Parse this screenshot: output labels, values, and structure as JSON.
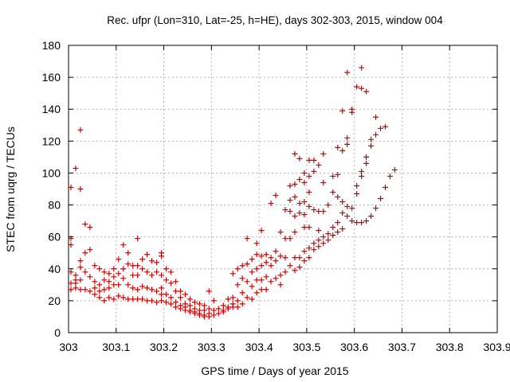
{
  "chart_data": {
    "type": "scatter",
    "title": "Rec. ufpr (Lon=310, Lat=-25, h=HE), days 302-303, 2015, window 004",
    "xlabel": "GPS time / Days of year 2015",
    "ylabel": "STEC from uqrg / TECUs",
    "xlim": [
      303,
      303.9
    ],
    "ylim": [
      0,
      180
    ],
    "xticks": [
      "303",
      "303.1",
      "303.2",
      "303.3",
      "303.4",
      "303.5",
      "303.6",
      "303.7",
      "303.8",
      "303.9"
    ],
    "yticks": [
      "0",
      "20",
      "40",
      "60",
      "80",
      "100",
      "120",
      "140",
      "160",
      "180"
    ],
    "grid": true,
    "marker": "plus",
    "color": "#cc0000",
    "points": [
      [
        303.005,
        91
      ],
      [
        303.005,
        59
      ],
      [
        303.005,
        55
      ],
      [
        303.005,
        38
      ],
      [
        303.005,
        31
      ],
      [
        303.005,
        27
      ],
      [
        303.015,
        103
      ],
      [
        303.015,
        36
      ],
      [
        303.015,
        33
      ],
      [
        303.015,
        31
      ],
      [
        303.015,
        28
      ],
      [
        303.025,
        127
      ],
      [
        303.025,
        90
      ],
      [
        303.025,
        45
      ],
      [
        303.025,
        41
      ],
      [
        303.025,
        33
      ],
      [
        303.025,
        27
      ],
      [
        303.035,
        68
      ],
      [
        303.035,
        50
      ],
      [
        303.035,
        38
      ],
      [
        303.035,
        27
      ],
      [
        303.045,
        66
      ],
      [
        303.045,
        52
      ],
      [
        303.045,
        35
      ],
      [
        303.045,
        26
      ],
      [
        303.055,
        42
      ],
      [
        303.055,
        32
      ],
      [
        303.055,
        28
      ],
      [
        303.055,
        24
      ],
      [
        303.065,
        40
      ],
      [
        303.065,
        30
      ],
      [
        303.065,
        26
      ],
      [
        303.065,
        22
      ],
      [
        303.075,
        38
      ],
      [
        303.075,
        33
      ],
      [
        303.075,
        27
      ],
      [
        303.075,
        20
      ],
      [
        303.085,
        37
      ],
      [
        303.085,
        32
      ],
      [
        303.085,
        28
      ],
      [
        303.085,
        22
      ],
      [
        303.095,
        40
      ],
      [
        303.095,
        35
      ],
      [
        303.095,
        30
      ],
      [
        303.095,
        21
      ],
      [
        303.105,
        46
      ],
      [
        303.105,
        37
      ],
      [
        303.105,
        30
      ],
      [
        303.105,
        23
      ],
      [
        303.115,
        55
      ],
      [
        303.115,
        40
      ],
      [
        303.115,
        34
      ],
      [
        303.115,
        22
      ],
      [
        303.125,
        50
      ],
      [
        303.125,
        43
      ],
      [
        303.125,
        30
      ],
      [
        303.125,
        21
      ],
      [
        303.135,
        42
      ],
      [
        303.135,
        36
      ],
      [
        303.135,
        28
      ],
      [
        303.135,
        21
      ],
      [
        303.145,
        59
      ],
      [
        303.145,
        42
      ],
      [
        303.145,
        36
      ],
      [
        303.145,
        27
      ],
      [
        303.145,
        21
      ],
      [
        303.155,
        46
      ],
      [
        303.155,
        40
      ],
      [
        303.155,
        29
      ],
      [
        303.155,
        21
      ],
      [
        303.165,
        49
      ],
      [
        303.165,
        38
      ],
      [
        303.165,
        28
      ],
      [
        303.165,
        20
      ],
      [
        303.175,
        45
      ],
      [
        303.175,
        36
      ],
      [
        303.175,
        27
      ],
      [
        303.175,
        20
      ],
      [
        303.185,
        44
      ],
      [
        303.185,
        38
      ],
      [
        303.185,
        26
      ],
      [
        303.185,
        19
      ],
      [
        303.195,
        50
      ],
      [
        303.195,
        48
      ],
      [
        303.195,
        36
      ],
      [
        303.195,
        28
      ],
      [
        303.195,
        24
      ],
      [
        303.195,
        20
      ],
      [
        303.205,
        40
      ],
      [
        303.205,
        33
      ],
      [
        303.205,
        24
      ],
      [
        303.205,
        19
      ],
      [
        303.215,
        38
      ],
      [
        303.215,
        31
      ],
      [
        303.215,
        22
      ],
      [
        303.215,
        18
      ],
      [
        303.225,
        32
      ],
      [
        303.225,
        26
      ],
      [
        303.225,
        19
      ],
      [
        303.225,
        16
      ],
      [
        303.235,
        26
      ],
      [
        303.235,
        22
      ],
      [
        303.235,
        17
      ],
      [
        303.235,
        15
      ],
      [
        303.245,
        24
      ],
      [
        303.245,
        18
      ],
      [
        303.245,
        16
      ],
      [
        303.245,
        14
      ],
      [
        303.255,
        21
      ],
      [
        303.255,
        17
      ],
      [
        303.255,
        14
      ],
      [
        303.255,
        13
      ],
      [
        303.265,
        19
      ],
      [
        303.265,
        15
      ],
      [
        303.265,
        13
      ],
      [
        303.265,
        12
      ],
      [
        303.275,
        18
      ],
      [
        303.275,
        14
      ],
      [
        303.275,
        12
      ],
      [
        303.275,
        11
      ],
      [
        303.285,
        17
      ],
      [
        303.285,
        14
      ],
      [
        303.285,
        11
      ],
      [
        303.285,
        10
      ],
      [
        303.295,
        26
      ],
      [
        303.295,
        15
      ],
      [
        303.295,
        12
      ],
      [
        303.295,
        10
      ],
      [
        303.305,
        20
      ],
      [
        303.305,
        14
      ],
      [
        303.305,
        11
      ],
      [
        303.315,
        15
      ],
      [
        303.315,
        12
      ],
      [
        303.325,
        17
      ],
      [
        303.325,
        13
      ],
      [
        303.325,
        14
      ],
      [
        303.335,
        21
      ],
      [
        303.335,
        16
      ],
      [
        303.335,
        15
      ],
      [
        303.345,
        37
      ],
      [
        303.345,
        22
      ],
      [
        303.345,
        18
      ],
      [
        303.345,
        16
      ],
      [
        303.355,
        40
      ],
      [
        303.355,
        30
      ],
      [
        303.355,
        20
      ],
      [
        303.355,
        16
      ],
      [
        303.365,
        42
      ],
      [
        303.365,
        34
      ],
      [
        303.365,
        25
      ],
      [
        303.365,
        18
      ],
      [
        303.375,
        59
      ],
      [
        303.375,
        43
      ],
      [
        303.375,
        32
      ],
      [
        303.375,
        22
      ],
      [
        303.385,
        46
      ],
      [
        303.385,
        38
      ],
      [
        303.385,
        29
      ],
      [
        303.385,
        21
      ],
      [
        303.395,
        56
      ],
      [
        303.395,
        49
      ],
      [
        303.395,
        40
      ],
      [
        303.395,
        33
      ],
      [
        303.395,
        25
      ],
      [
        303.405,
        64
      ],
      [
        303.405,
        48
      ],
      [
        303.405,
        42
      ],
      [
        303.405,
        33
      ],
      [
        303.405,
        27
      ],
      [
        303.415,
        49
      ],
      [
        303.415,
        44
      ],
      [
        303.415,
        35
      ],
      [
        303.415,
        27
      ],
      [
        303.425,
        81
      ],
      [
        303.425,
        47
      ],
      [
        303.425,
        42
      ],
      [
        303.425,
        32
      ],
      [
        303.435,
        86
      ],
      [
        303.435,
        51
      ],
      [
        303.435,
        45
      ],
      [
        303.435,
        34
      ],
      [
        303.445,
        63
      ],
      [
        303.445,
        48
      ],
      [
        303.445,
        36
      ],
      [
        303.445,
        30
      ],
      [
        303.455,
        77
      ],
      [
        303.455,
        59
      ],
      [
        303.455,
        47
      ],
      [
        303.455,
        38
      ],
      [
        303.465,
        92
      ],
      [
        303.465,
        83
      ],
      [
        303.465,
        76
      ],
      [
        303.465,
        59
      ],
      [
        303.465,
        42
      ],
      [
        303.475,
        112
      ],
      [
        303.475,
        93
      ],
      [
        303.475,
        85
      ],
      [
        303.475,
        73
      ],
      [
        303.475,
        63
      ],
      [
        303.475,
        47
      ],
      [
        303.475,
        39
      ],
      [
        303.485,
        109
      ],
      [
        303.485,
        96
      ],
      [
        303.485,
        81
      ],
      [
        303.485,
        75
      ],
      [
        303.485,
        47
      ],
      [
        303.485,
        41
      ],
      [
        303.495,
        100
      ],
      [
        303.495,
        94
      ],
      [
        303.495,
        82
      ],
      [
        303.495,
        74
      ],
      [
        303.495,
        66
      ],
      [
        303.495,
        51
      ],
      [
        303.495,
        45
      ],
      [
        303.505,
        108
      ],
      [
        303.505,
        98
      ],
      [
        303.505,
        88
      ],
      [
        303.505,
        79
      ],
      [
        303.505,
        66
      ],
      [
        303.505,
        53
      ],
      [
        303.505,
        47
      ],
      [
        303.515,
        108
      ],
      [
        303.515,
        101
      ],
      [
        303.515,
        77
      ],
      [
        303.515,
        56
      ],
      [
        303.515,
        52
      ],
      [
        303.525,
        105
      ],
      [
        303.525,
        76
      ],
      [
        303.525,
        64
      ],
      [
        303.525,
        58
      ],
      [
        303.525,
        54
      ],
      [
        303.535,
        112
      ],
      [
        303.535,
        94
      ],
      [
        303.535,
        76
      ],
      [
        303.535,
        60
      ],
      [
        303.535,
        56
      ],
      [
        303.545,
        80
      ],
      [
        303.545,
        62
      ],
      [
        303.545,
        58
      ],
      [
        303.555,
        98
      ],
      [
        303.555,
        88
      ],
      [
        303.555,
        66
      ],
      [
        303.555,
        61
      ],
      [
        303.565,
        116
      ],
      [
        303.565,
        99
      ],
      [
        303.565,
        85
      ],
      [
        303.565,
        69
      ],
      [
        303.565,
        63
      ],
      [
        303.575,
        139
      ],
      [
        303.575,
        114
      ],
      [
        303.575,
        82
      ],
      [
        303.575,
        75
      ],
      [
        303.575,
        65
      ],
      [
        303.585,
        163
      ],
      [
        303.585,
        122
      ],
      [
        303.585,
        118
      ],
      [
        303.585,
        79
      ],
      [
        303.585,
        73
      ],
      [
        303.595,
        140
      ],
      [
        303.595,
        138
      ],
      [
        303.595,
        78
      ],
      [
        303.595,
        70
      ],
      [
        303.605,
        154
      ],
      [
        303.605,
        92
      ],
      [
        303.605,
        87
      ],
      [
        303.605,
        69
      ],
      [
        303.615,
        166
      ],
      [
        303.615,
        153
      ],
      [
        303.615,
        101
      ],
      [
        303.615,
        98
      ],
      [
        303.615,
        69
      ],
      [
        303.625,
        151
      ],
      [
        303.625,
        110
      ],
      [
        303.625,
        106
      ],
      [
        303.625,
        70
      ],
      [
        303.635,
        121
      ],
      [
        303.635,
        117
      ],
      [
        303.635,
        73
      ],
      [
        303.645,
        135
      ],
      [
        303.645,
        124
      ],
      [
        303.645,
        78
      ],
      [
        303.655,
        128
      ],
      [
        303.655,
        84
      ],
      [
        303.665,
        129
      ],
      [
        303.665,
        91
      ],
      [
        303.675,
        98
      ],
      [
        303.685,
        102
      ]
    ]
  }
}
